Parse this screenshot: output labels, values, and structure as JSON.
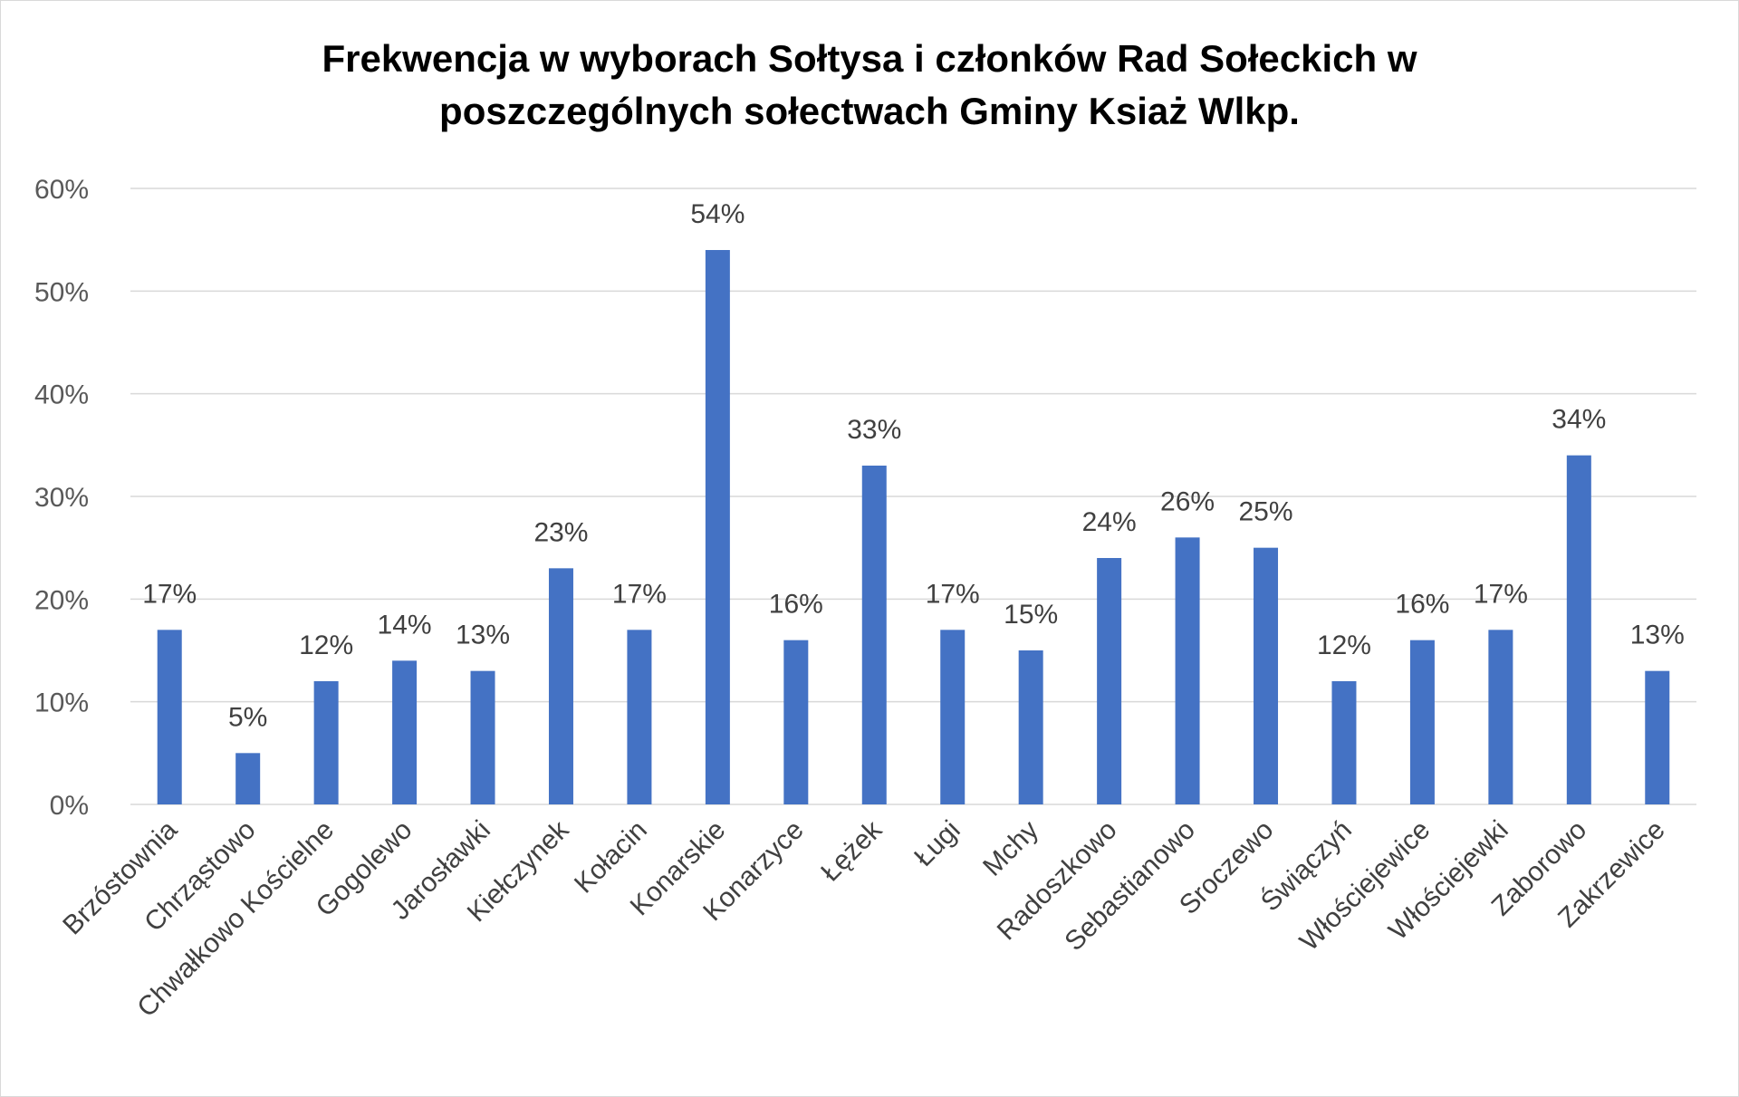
{
  "chart_data": {
    "type": "bar",
    "title_lines": [
      "Frekwencja w wyborach Sołtysa i członków Rad Sołeckich w",
      "poszczególnych sołectwach Gminy Ksiaż Wlkp."
    ],
    "categories": [
      "Brzóstownia",
      "Chrząstowo",
      "Chwałkowo Kościelne",
      "Gogolewo",
      "Jarosławki",
      "Kiełczynek",
      "Kołacin",
      "Konarskie",
      "Konarzyce",
      "Łężek",
      "Ługi",
      "Mchy",
      "Radoszkowo",
      "Sebastianowo",
      "Sroczewo",
      "Świączyń",
      "Włościejewice",
      "Włościejewki",
      "Zaborowo",
      "Zakrzewice"
    ],
    "values": [
      17,
      5,
      12,
      14,
      13,
      23,
      17,
      54,
      16,
      33,
      17,
      15,
      24,
      26,
      25,
      12,
      16,
      17,
      34,
      13
    ],
    "value_labels": [
      "17%",
      "5%",
      "12%",
      "14%",
      "13%",
      "23%",
      "17%",
      "54%",
      "16%",
      "33%",
      "17%",
      "15%",
      "24%",
      "26%",
      "25%",
      "12%",
      "16%",
      "17%",
      "34%",
      "13%"
    ],
    "y_ticks": [
      "0%",
      "10%",
      "20%",
      "30%",
      "40%",
      "50%",
      "60%"
    ],
    "ylim": [
      0,
      60
    ],
    "ylabel": "",
    "xlabel": "",
    "grid": true,
    "legend": "none",
    "bar_color": "#4472c4",
    "grid_color": "#d9d9d9"
  }
}
